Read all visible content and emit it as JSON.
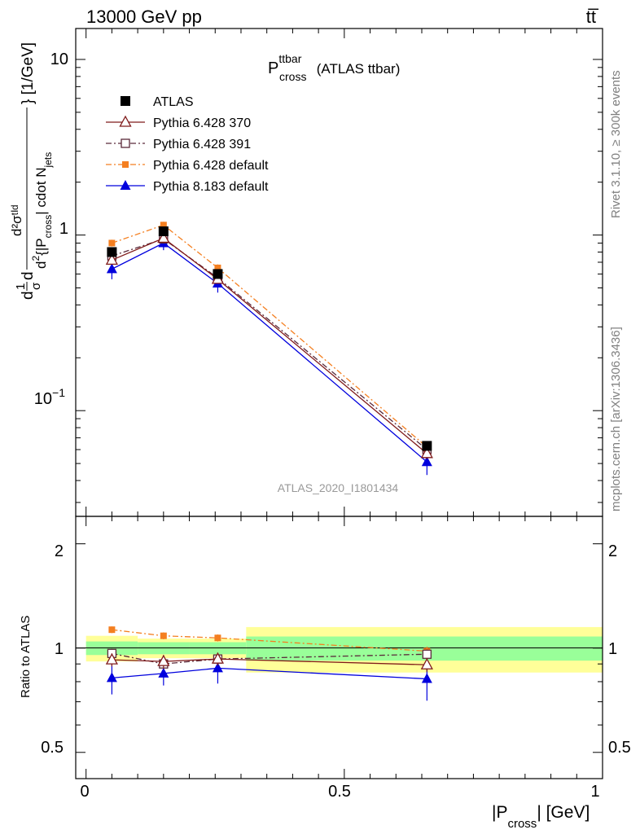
{
  "header": {
    "energy_label": "13000 GeV pp",
    "process_label": "tt̅"
  },
  "side_labels": {
    "rivet": "Rivet 3.1.10, ≥ 300k events",
    "mcplots": "mcplots.cern.ch [arXiv:1306.3436]"
  },
  "chart_data": [
    {
      "type": "line",
      "panel": "main",
      "title_main": "P",
      "title_sup": "ttbar",
      "title_sub": "cross",
      "title_rest": " (ATLAS ttbar)",
      "watermark": "ATLAS_2020_I1801434",
      "y_scale": "log",
      "ylim": [
        0.025,
        15
      ],
      "xlim": [
        -0.02,
        1.0
      ],
      "y_ticks": [
        {
          "value": 10,
          "label": "10"
        },
        {
          "value": 1,
          "label": "1"
        },
        {
          "value": 0.1,
          "label_base": "10",
          "label_exp": "−1"
        }
      ],
      "ylabel": {
        "prefix": "d",
        "frac_num": "1",
        "frac_den": "σ",
        "d_mid": "d",
        "num": "d²σᵗᴵᵈ",
        "den_pre": "d",
        "den_sup": "2",
        "den_body": "{|P",
        "den_sub": "cross",
        "den_mid": "| cdot N",
        "den_sub2": "jets",
        "suffix": "} [1/GeV]"
      },
      "legend_position": "top-left",
      "series": [
        {
          "name": "ATLAS",
          "color": "#000000",
          "marker": "square-filled",
          "line": "none",
          "x": [
            0.05,
            0.15,
            0.255,
            0.66
          ],
          "y": [
            0.8,
            1.05,
            0.6,
            0.063
          ],
          "yerr": [
            0.03,
            0.04,
            0.02,
            0.003
          ]
        },
        {
          "name": "Pythia 6.428 370",
          "color": "#7f1a1a",
          "marker": "triangle-open",
          "line": "solid",
          "x": [
            0.05,
            0.15,
            0.255,
            0.66
          ],
          "y": [
            0.72,
            0.96,
            0.56,
            0.057
          ],
          "yerr": [
            0.04,
            0.05,
            0.03,
            0.004
          ]
        },
        {
          "name": "Pythia 6.428 391",
          "color": "#5a2a3a",
          "marker": "square-open",
          "line": "dashdot",
          "x": [
            0.05,
            0.15,
            0.255,
            0.66
          ],
          "y": [
            0.76,
            0.95,
            0.57,
            0.06
          ],
          "yerr": [
            0.04,
            0.05,
            0.03,
            0.004
          ]
        },
        {
          "name": "Pythia 6.428 default",
          "color": "#f47f20",
          "marker": "square-small",
          "line": "dashdot",
          "x": [
            0.05,
            0.15,
            0.255,
            0.66
          ],
          "y": [
            0.9,
            1.14,
            0.65,
            0.062
          ],
          "yerr": [
            0.04,
            0.05,
            0.03,
            0.004
          ]
        },
        {
          "name": "Pythia 8.183 default",
          "color": "#0000dd",
          "marker": "triangle-filled",
          "line": "solid",
          "x": [
            0.05,
            0.15,
            0.255,
            0.66
          ],
          "y": [
            0.64,
            0.9,
            0.53,
            0.051
          ],
          "yerr": [
            0.08,
            0.08,
            0.06,
            0.008
          ]
        }
      ]
    },
    {
      "type": "line",
      "panel": "ratio",
      "ylabel": "Ratio to ATLAS",
      "xlabel_pre": "|P",
      "xlabel_sub": "cross",
      "xlabel_post": "| [GeV]",
      "y_scale": "log",
      "ylim": [
        0.42,
        2.4
      ],
      "xlim": [
        -0.02,
        1.0
      ],
      "x_ticks": [
        {
          "value": 0,
          "label": "0"
        },
        {
          "value": 0.5,
          "label": "0.5"
        },
        {
          "value": 1,
          "label": "1"
        }
      ],
      "y_ticks": [
        {
          "value": 2,
          "label": "2"
        },
        {
          "value": 1,
          "label": "1"
        },
        {
          "value": 0.5,
          "label": "0.5"
        }
      ],
      "bands": [
        {
          "x0": 0.0,
          "x1": 0.1,
          "inner": [
            0.955,
            1.045
          ],
          "outer": [
            0.915,
            1.085
          ]
        },
        {
          "x0": 0.1,
          "x1": 0.2,
          "inner": [
            0.96,
            1.04
          ],
          "outer": [
            0.935,
            1.065
          ]
        },
        {
          "x0": 0.2,
          "x1": 0.31,
          "inner": [
            0.96,
            1.04
          ],
          "outer": [
            0.935,
            1.065
          ]
        },
        {
          "x0": 0.31,
          "x1": 1.0,
          "inner": [
            0.92,
            1.08
          ],
          "outer": [
            0.85,
            1.15
          ]
        }
      ],
      "band_colors": {
        "inner": "#99ff99",
        "outer": "#ffff99"
      },
      "series": [
        {
          "name": "Pythia 6.428 370",
          "color": "#7f1a1a",
          "marker": "triangle-open",
          "line": "solid",
          "x": [
            0.05,
            0.15,
            0.255,
            0.66
          ],
          "y": [
            0.925,
            0.915,
            0.93,
            0.895
          ],
          "yerr": [
            0.04,
            0.04,
            0.04,
            0.04
          ]
        },
        {
          "name": "Pythia 6.428 391",
          "color": "#5a2a3a",
          "marker": "square-open",
          "line": "dashdot",
          "x": [
            0.05,
            0.15,
            0.255,
            0.66
          ],
          "y": [
            0.965,
            0.9,
            0.93,
            0.96
          ],
          "yerr": [
            0.03,
            0.03,
            0.03,
            0.03
          ]
        },
        {
          "name": "Pythia 6.428 default",
          "color": "#f47f20",
          "marker": "square-small",
          "line": "dashdot",
          "x": [
            0.05,
            0.15,
            0.255,
            0.66
          ],
          "y": [
            1.13,
            1.085,
            1.07,
            0.98
          ],
          "yerr": [
            0.025,
            0.025,
            0.025,
            0.03
          ]
        },
        {
          "name": "Pythia 8.183 default",
          "color": "#0000dd",
          "marker": "triangle-filled",
          "line": "solid",
          "x": [
            0.05,
            0.15,
            0.255,
            0.66
          ],
          "y": [
            0.82,
            0.845,
            0.875,
            0.815
          ],
          "yerr": [
            0.085,
            0.065,
            0.085,
            0.11
          ]
        }
      ]
    }
  ]
}
